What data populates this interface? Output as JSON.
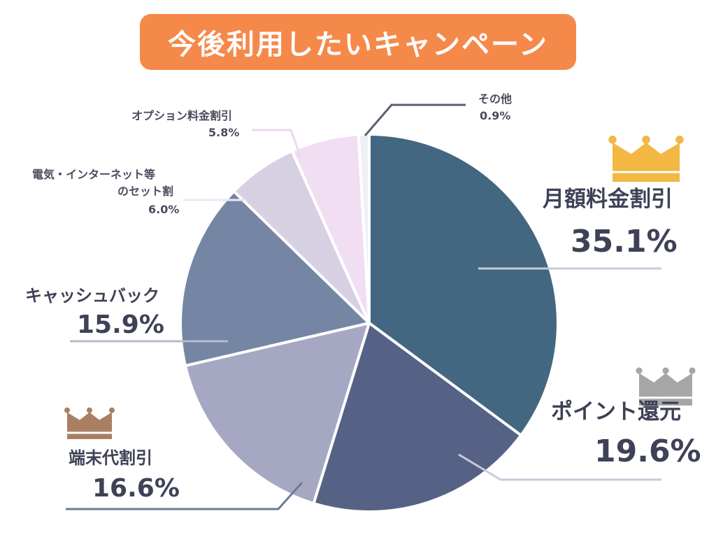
{
  "chart_data": {
    "type": "pie",
    "title": "今後利用したいキャンペーン",
    "slices": [
      {
        "label": "月額料金割引",
        "label_lines": [
          "月額料金割引"
        ],
        "value": 35.1,
        "value_text": "35.1%",
        "color": "#436781",
        "rank": 1,
        "crown_color": "#f2b843"
      },
      {
        "label": "ポイント還元",
        "label_lines": [
          "ポイント還元"
        ],
        "value": 19.6,
        "value_text": "19.6%",
        "color": "#566285",
        "rank": 2,
        "crown_color": "#a6a6a6"
      },
      {
        "label": "端末代割引",
        "label_lines": [
          "端末代割引"
        ],
        "value": 16.6,
        "value_text": "16.6%",
        "color": "#a6a8c3",
        "rank": 3,
        "crown_color": "#a97f63"
      },
      {
        "label": "キャッシュバック",
        "label_lines": [
          "キャッシュバック"
        ],
        "value": 15.9,
        "value_text": "15.9%",
        "color": "#7486a3"
      },
      {
        "label": "電気・インターネット等のセット割",
        "label_lines": [
          "電気・インターネット等",
          "のセット割"
        ],
        "value": 6.0,
        "value_text": "6.0%",
        "color": "#d7d0e3"
      },
      {
        "label": "オプション料金割引",
        "label_lines": [
          "オプション料金割引"
        ],
        "value": 5.8,
        "value_text": "5.8%",
        "color": "#f1def2"
      },
      {
        "label": "その他",
        "label_lines": [
          "その他"
        ],
        "value": 0.9,
        "value_text": "0.9%",
        "color": "#eef0f6"
      }
    ]
  }
}
